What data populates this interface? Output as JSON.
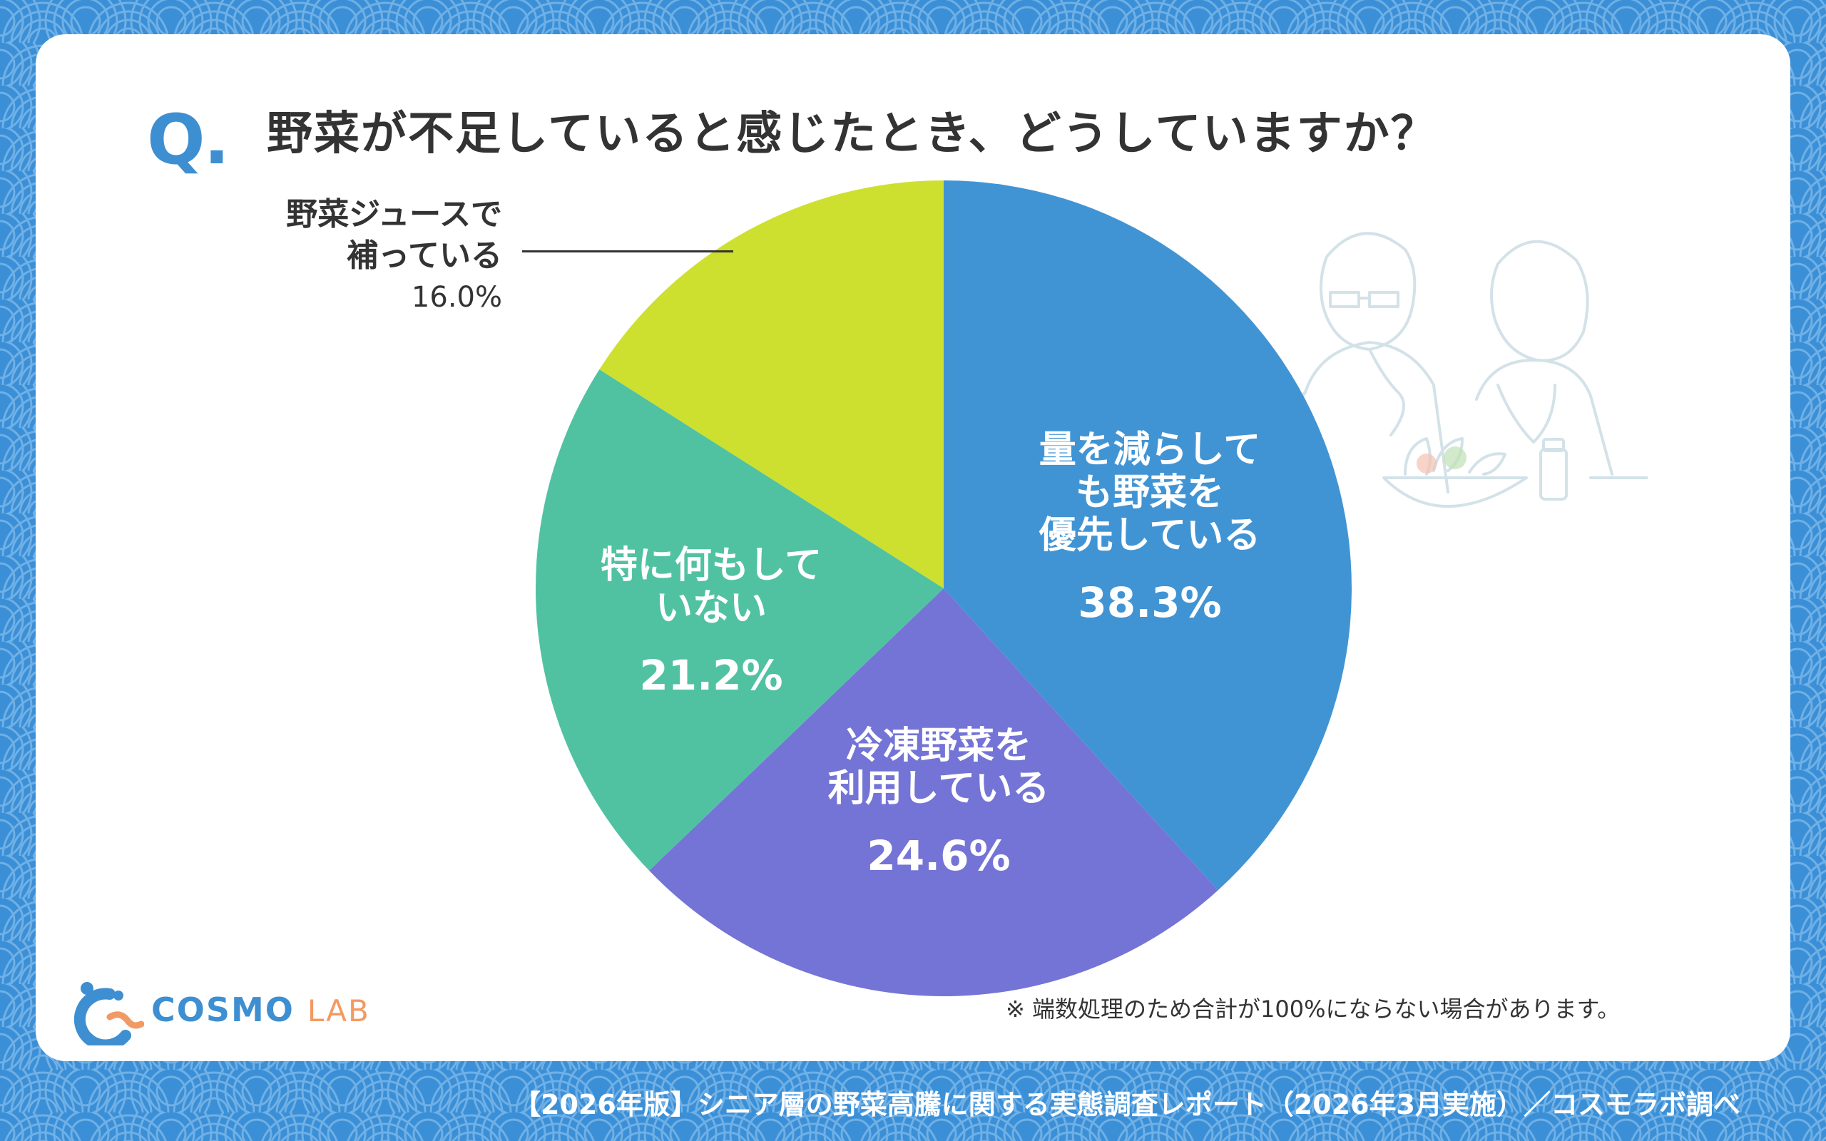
{
  "question": {
    "mark": "Q.",
    "text": "野菜が不足していると感じたとき、どうしていますか？"
  },
  "chart_data": {
    "type": "pie",
    "categories": [
      "量を減らしても野菜を優先している",
      "冷凍野菜を利用している",
      "特に何もしていない",
      "野菜ジュースで補っている"
    ],
    "values": [
      38.3,
      24.6,
      21.2,
      16.0
    ],
    "labels": [
      {
        "lines": [
          "量を減らして",
          "も野菜を",
          "優先している"
        ],
        "pct": "38.3%"
      },
      {
        "lines": [
          "冷凍野菜を",
          "利用している"
        ],
        "pct": "24.6%"
      },
      {
        "lines": [
          "特に何もして",
          "いない"
        ],
        "pct": "21.2%"
      },
      {
        "lines": [
          "野菜ジュースで",
          "補っている"
        ],
        "pct": "16.0%"
      }
    ],
    "colors": [
      "#4194d4",
      "#7474d6",
      "#50c2a2",
      "#cde02f"
    ],
    "start": "12 o'clock",
    "direction": "clockwise"
  },
  "note": "※ 端数処理のため合計が100%にならない場合があります。",
  "logo": {
    "main": "COSMO",
    "sub": "LAB"
  },
  "footer": "【2026年版】シニア層の野菜高騰に関する実態調査レポート（2026年3月実施）／コスモラボ調べ",
  "colors": {
    "background": "#3b8fd6",
    "card": "#ffffff",
    "accent": "#3e8fd1",
    "text": "#333333"
  }
}
